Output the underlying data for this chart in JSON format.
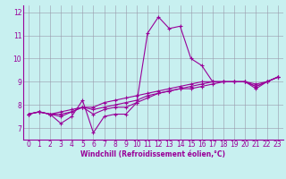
{
  "xlabel": "Windchill (Refroidissement éolien,°C)",
  "background_color": "#c8f0f0",
  "line_color": "#990099",
  "grid_color": "#9999aa",
  "x_hours": [
    0,
    1,
    2,
    3,
    4,
    5,
    6,
    7,
    8,
    9,
    10,
    11,
    12,
    13,
    14,
    15,
    16,
    17,
    18,
    19,
    20,
    21,
    22,
    23
  ],
  "series": {
    "line_volatile": [
      7.6,
      7.7,
      7.6,
      7.2,
      7.5,
      8.2,
      6.8,
      7.5,
      7.6,
      7.6,
      8.1,
      11.1,
      11.8,
      11.3,
      11.4,
      10.0,
      9.7,
      9.0,
      9.0,
      9.0,
      9.0,
      8.7,
      9.0,
      9.2
    ],
    "line_smooth1": [
      7.6,
      7.7,
      7.6,
      7.5,
      7.7,
      7.9,
      7.6,
      7.8,
      7.9,
      7.9,
      8.1,
      8.3,
      8.5,
      8.6,
      8.7,
      8.7,
      8.8,
      8.9,
      9.0,
      9.0,
      9.0,
      8.8,
      9.0,
      9.2
    ],
    "line_smooth2": [
      7.6,
      7.7,
      7.6,
      7.6,
      7.7,
      7.9,
      7.8,
      7.9,
      8.0,
      8.1,
      8.2,
      8.4,
      8.5,
      8.6,
      8.7,
      8.8,
      8.9,
      9.0,
      9.0,
      9.0,
      9.0,
      8.8,
      9.0,
      9.2
    ],
    "line_smooth3": [
      7.6,
      7.7,
      7.6,
      7.7,
      7.8,
      7.9,
      7.9,
      8.1,
      8.2,
      8.3,
      8.4,
      8.5,
      8.6,
      8.7,
      8.8,
      8.9,
      9.0,
      9.0,
      9.0,
      9.0,
      9.0,
      8.9,
      9.0,
      9.2
    ]
  },
  "ylim": [
    6.5,
    12.3
  ],
  "xlim": [
    -0.5,
    23.5
  ],
  "yticks": [
    7,
    8,
    9,
    10,
    11,
    12
  ],
  "xticks": [
    0,
    1,
    2,
    3,
    4,
    5,
    6,
    7,
    8,
    9,
    10,
    11,
    12,
    13,
    14,
    15,
    16,
    17,
    18,
    19,
    20,
    21,
    22,
    23
  ],
  "tick_fontsize": 5.5,
  "xlabel_fontsize": 5.5,
  "linewidth": 0.8,
  "markersize": 3.0
}
